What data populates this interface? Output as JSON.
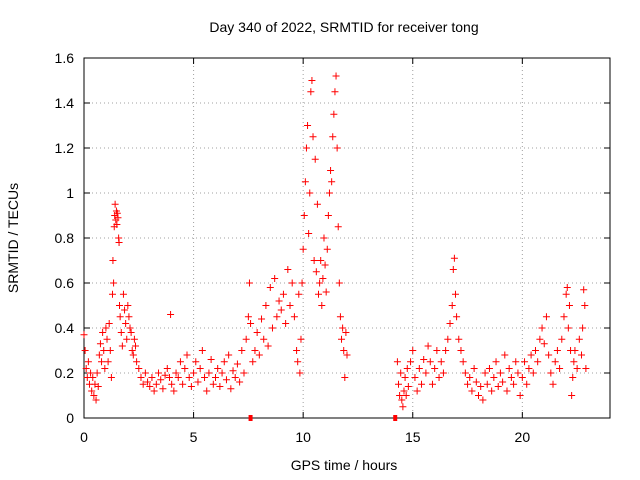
{
  "chart_data": {
    "type": "scatter",
    "title": "Day 340 of 2022, SRMTID for receiver tong",
    "xlabel": "GPS time / hours",
    "ylabel": "SRMTID / TECUs",
    "xlim": [
      0,
      24
    ],
    "ylim": [
      0,
      1.6
    ],
    "x_ticks": [
      {
        "v": 0,
        "label": "0"
      },
      {
        "v": 5,
        "label": "5"
      },
      {
        "v": 10,
        "label": "10"
      },
      {
        "v": 15,
        "label": "15"
      },
      {
        "v": 20,
        "label": "20"
      }
    ],
    "y_ticks": [
      {
        "v": 0,
        "label": "0"
      },
      {
        "v": 0.2,
        "label": "0.2"
      },
      {
        "v": 0.4,
        "label": "0.4"
      },
      {
        "v": 0.6,
        "label": "0.6"
      },
      {
        "v": 0.8,
        "label": "0.8"
      },
      {
        "v": 1.0,
        "label": "1"
      },
      {
        "v": 1.2,
        "label": "1.2"
      },
      {
        "v": 1.4,
        "label": "1.4"
      },
      {
        "v": 1.6,
        "label": "1.6"
      }
    ],
    "grid": true,
    "marker": "+",
    "color": "#ff0000",
    "series": [
      {
        "name": "SRMTID",
        "points": [
          [
            0.0,
            0.37
          ],
          [
            0.05,
            0.3
          ],
          [
            0.1,
            0.22
          ],
          [
            0.15,
            0.18
          ],
          [
            0.2,
            0.25
          ],
          [
            0.25,
            0.15
          ],
          [
            0.3,
            0.2
          ],
          [
            0.35,
            0.12
          ],
          [
            0.4,
            0.18
          ],
          [
            0.45,
            0.1
          ],
          [
            0.5,
            0.15
          ],
          [
            0.55,
            0.08
          ],
          [
            0.6,
            0.2
          ],
          [
            0.65,
            0.14
          ],
          [
            0.7,
            0.28
          ],
          [
            0.75,
            0.33
          ],
          [
            0.8,
            0.25
          ],
          [
            0.85,
            0.38
          ],
          [
            0.9,
            0.3
          ],
          [
            0.95,
            0.22
          ],
          [
            1.0,
            0.4
          ],
          [
            1.05,
            0.35
          ],
          [
            1.1,
            0.25
          ],
          [
            1.15,
            0.42
          ],
          [
            1.2,
            0.3
          ],
          [
            1.25,
            0.18
          ],
          [
            1.3,
            0.55
          ],
          [
            1.32,
            0.7
          ],
          [
            1.35,
            0.6
          ],
          [
            1.38,
            0.85
          ],
          [
            1.4,
            0.9
          ],
          [
            1.42,
            0.95
          ],
          [
            1.45,
            0.88
          ],
          [
            1.48,
            0.92
          ],
          [
            1.5,
            0.86
          ],
          [
            1.52,
            0.91
          ],
          [
            1.55,
            0.89
          ],
          [
            1.58,
            0.8
          ],
          [
            1.6,
            0.78
          ],
          [
            1.62,
            0.5
          ],
          [
            1.65,
            0.45
          ],
          [
            1.7,
            0.38
          ],
          [
            1.75,
            0.32
          ],
          [
            1.8,
            0.55
          ],
          [
            1.85,
            0.48
          ],
          [
            1.9,
            0.42
          ],
          [
            1.95,
            0.35
          ],
          [
            2.0,
            0.5
          ],
          [
            2.05,
            0.45
          ],
          [
            2.1,
            0.4
          ],
          [
            2.15,
            0.38
          ],
          [
            2.2,
            0.3
          ],
          [
            2.25,
            0.28
          ],
          [
            2.3,
            0.35
          ],
          [
            2.35,
            0.32
          ],
          [
            2.4,
            0.25
          ],
          [
            2.5,
            0.22
          ],
          [
            2.6,
            0.18
          ],
          [
            2.7,
            0.15
          ],
          [
            2.8,
            0.2
          ],
          [
            2.9,
            0.16
          ],
          [
            3.0,
            0.14
          ],
          [
            3.1,
            0.18
          ],
          [
            3.2,
            0.12
          ],
          [
            3.3,
            0.15
          ],
          [
            3.4,
            0.2
          ],
          [
            3.5,
            0.17
          ],
          [
            3.6,
            0.13
          ],
          [
            3.7,
            0.19
          ],
          [
            3.8,
            0.22
          ],
          [
            3.9,
            0.18
          ],
          [
            3.95,
            0.46
          ],
          [
            4.0,
            0.15
          ],
          [
            4.1,
            0.12
          ],
          [
            4.2,
            0.2
          ],
          [
            4.3,
            0.18
          ],
          [
            4.4,
            0.25
          ],
          [
            4.5,
            0.15
          ],
          [
            4.6,
            0.22
          ],
          [
            4.7,
            0.28
          ],
          [
            4.8,
            0.18
          ],
          [
            4.9,
            0.14
          ],
          [
            5.0,
            0.2
          ],
          [
            5.1,
            0.25
          ],
          [
            5.2,
            0.16
          ],
          [
            5.3,
            0.22
          ],
          [
            5.4,
            0.3
          ],
          [
            5.5,
            0.18
          ],
          [
            5.6,
            0.12
          ],
          [
            5.7,
            0.2
          ],
          [
            5.8,
            0.26
          ],
          [
            5.9,
            0.15
          ],
          [
            6.0,
            0.18
          ],
          [
            6.1,
            0.22
          ],
          [
            6.2,
            0.14
          ],
          [
            6.3,
            0.2
          ],
          [
            6.4,
            0.25
          ],
          [
            6.5,
            0.17
          ],
          [
            6.6,
            0.28
          ],
          [
            6.7,
            0.13
          ],
          [
            6.8,
            0.21
          ],
          [
            6.9,
            0.18
          ],
          [
            7.0,
            0.24
          ],
          [
            7.1,
            0.16
          ],
          [
            7.2,
            0.3
          ],
          [
            7.3,
            0.2
          ],
          [
            7.4,
            0.35
          ],
          [
            7.5,
            0.45
          ],
          [
            7.55,
            0.6
          ],
          [
            7.6,
            0.42
          ],
          [
            7.7,
            0.25
          ],
          [
            7.8,
            0.3
          ],
          [
            7.9,
            0.38
          ],
          [
            8.0,
            0.28
          ],
          [
            8.1,
            0.44
          ],
          [
            8.2,
            0.35
          ],
          [
            8.3,
            0.5
          ],
          [
            8.4,
            0.32
          ],
          [
            8.5,
            0.58
          ],
          [
            8.6,
            0.4
          ],
          [
            8.7,
            0.62
          ],
          [
            8.8,
            0.45
          ],
          [
            8.9,
            0.52
          ],
          [
            9.0,
            0.48
          ],
          [
            9.1,
            0.55
          ],
          [
            9.2,
            0.42
          ],
          [
            9.3,
            0.66
          ],
          [
            9.4,
            0.5
          ],
          [
            9.5,
            0.6
          ],
          [
            9.6,
            0.45
          ],
          [
            9.7,
            0.3
          ],
          [
            9.75,
            0.25
          ],
          [
            9.8,
            0.55
          ],
          [
            9.85,
            0.2
          ],
          [
            9.9,
            0.35
          ],
          [
            9.95,
            0.6
          ],
          [
            10.0,
            0.75
          ],
          [
            10.05,
            0.9
          ],
          [
            10.1,
            1.05
          ],
          [
            10.15,
            1.2
          ],
          [
            10.2,
            1.3
          ],
          [
            10.25,
            0.82
          ],
          [
            10.3,
            1.0
          ],
          [
            10.35,
            1.45
          ],
          [
            10.4,
            1.5
          ],
          [
            10.45,
            1.25
          ],
          [
            10.5,
            0.7
          ],
          [
            10.55,
            1.15
          ],
          [
            10.6,
            0.65
          ],
          [
            10.65,
            0.95
          ],
          [
            10.7,
            0.55
          ],
          [
            10.75,
            0.6
          ],
          [
            10.8,
            0.7
          ],
          [
            10.85,
            0.5
          ],
          [
            10.9,
            0.62
          ],
          [
            10.95,
            0.8
          ],
          [
            11.0,
            0.68
          ],
          [
            11.05,
            0.56
          ],
          [
            11.1,
            0.75
          ],
          [
            11.15,
            0.9
          ],
          [
            11.2,
            1.0
          ],
          [
            11.25,
            1.1
          ],
          [
            11.3,
            1.05
          ],
          [
            11.35,
            1.25
          ],
          [
            11.4,
            1.35
          ],
          [
            11.45,
            1.45
          ],
          [
            11.5,
            1.52
          ],
          [
            11.55,
            1.2
          ],
          [
            11.6,
            0.85
          ],
          [
            11.65,
            0.6
          ],
          [
            11.7,
            0.45
          ],
          [
            11.75,
            0.35
          ],
          [
            11.8,
            0.4
          ],
          [
            11.85,
            0.3
          ],
          [
            11.9,
            0.18
          ],
          [
            11.95,
            0.38
          ],
          [
            12.0,
            0.28
          ],
          [
            14.3,
            0.25
          ],
          [
            14.35,
            0.15
          ],
          [
            14.4,
            0.1
          ],
          [
            14.45,
            0.2
          ],
          [
            14.5,
            0.08
          ],
          [
            14.55,
            0.05
          ],
          [
            14.6,
            0.12
          ],
          [
            14.65,
            0.18
          ],
          [
            14.7,
            0.1
          ],
          [
            14.75,
            0.22
          ],
          [
            14.8,
            0.14
          ],
          [
            14.9,
            0.25
          ],
          [
            15.0,
            0.3
          ],
          [
            15.1,
            0.18
          ],
          [
            15.2,
            0.12
          ],
          [
            15.3,
            0.22
          ],
          [
            15.4,
            0.15
          ],
          [
            15.5,
            0.26
          ],
          [
            15.6,
            0.2
          ],
          [
            15.7,
            0.32
          ],
          [
            15.8,
            0.25
          ],
          [
            15.9,
            0.15
          ],
          [
            16.0,
            0.22
          ],
          [
            16.1,
            0.3
          ],
          [
            16.2,
            0.18
          ],
          [
            16.3,
            0.25
          ],
          [
            16.4,
            0.2
          ],
          [
            16.5,
            0.3
          ],
          [
            16.6,
            0.35
          ],
          [
            16.7,
            0.42
          ],
          [
            16.8,
            0.5
          ],
          [
            16.85,
            0.66
          ],
          [
            16.9,
            0.71
          ],
          [
            16.95,
            0.55
          ],
          [
            17.0,
            0.45
          ],
          [
            17.1,
            0.35
          ],
          [
            17.2,
            0.3
          ],
          [
            17.3,
            0.25
          ],
          [
            17.4,
            0.2
          ],
          [
            17.5,
            0.15
          ],
          [
            17.6,
            0.18
          ],
          [
            17.7,
            0.12
          ],
          [
            17.8,
            0.22
          ],
          [
            17.9,
            0.16
          ],
          [
            18.0,
            0.1
          ],
          [
            18.1,
            0.14
          ],
          [
            18.2,
            0.08
          ],
          [
            18.3,
            0.2
          ],
          [
            18.4,
            0.15
          ],
          [
            18.5,
            0.22
          ],
          [
            18.6,
            0.12
          ],
          [
            18.7,
            0.18
          ],
          [
            18.8,
            0.25
          ],
          [
            18.9,
            0.14
          ],
          [
            19.0,
            0.2
          ],
          [
            19.1,
            0.16
          ],
          [
            19.2,
            0.28
          ],
          [
            19.3,
            0.12
          ],
          [
            19.4,
            0.22
          ],
          [
            19.5,
            0.18
          ],
          [
            19.6,
            0.15
          ],
          [
            19.7,
            0.25
          ],
          [
            19.8,
            0.2
          ],
          [
            19.9,
            0.1
          ],
          [
            20.0,
            0.18
          ],
          [
            20.1,
            0.25
          ],
          [
            20.2,
            0.15
          ],
          [
            20.3,
            0.22
          ],
          [
            20.4,
            0.28
          ],
          [
            20.5,
            0.2
          ],
          [
            20.6,
            0.3
          ],
          [
            20.7,
            0.25
          ],
          [
            20.8,
            0.35
          ],
          [
            20.9,
            0.4
          ],
          [
            21.0,
            0.33
          ],
          [
            21.1,
            0.45
          ],
          [
            21.2,
            0.28
          ],
          [
            21.3,
            0.2
          ],
          [
            21.4,
            0.15
          ],
          [
            21.5,
            0.25
          ],
          [
            21.6,
            0.3
          ],
          [
            21.7,
            0.22
          ],
          [
            21.8,
            0.35
          ],
          [
            21.9,
            0.45
          ],
          [
            22.0,
            0.55
          ],
          [
            22.05,
            0.58
          ],
          [
            22.1,
            0.4
          ],
          [
            22.15,
            0.5
          ],
          [
            22.2,
            0.3
          ],
          [
            22.25,
            0.1
          ],
          [
            22.3,
            0.18
          ],
          [
            22.35,
            0.25
          ],
          [
            22.4,
            0.3
          ],
          [
            22.5,
            0.22
          ],
          [
            22.6,
            0.35
          ],
          [
            22.7,
            0.28
          ],
          [
            22.75,
            0.4
          ],
          [
            22.8,
            0.57
          ],
          [
            22.85,
            0.5
          ],
          [
            22.9,
            0.22
          ]
        ]
      }
    ],
    "square_markers": [
      {
        "x": 7.6,
        "y": 0.0
      },
      {
        "x": 14.2,
        "y": 0.0
      }
    ]
  }
}
